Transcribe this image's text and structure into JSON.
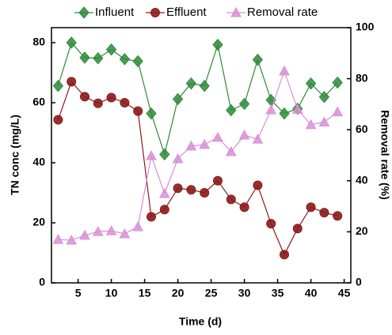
{
  "chart_data": {
    "type": "line",
    "xlabel": "Time (d)",
    "ylabel": "TN conc (mg/L)",
    "y2label": "Removal rate (%)",
    "x": [
      2,
      4,
      6,
      8,
      10,
      12,
      14,
      16,
      18,
      20,
      22,
      24,
      26,
      28,
      30,
      32,
      34,
      36,
      38,
      40,
      42,
      44
    ],
    "series": [
      {
        "name": "Influent",
        "color": "#2e8b3a",
        "marker": "diamond",
        "values": [
          65.6,
          80,
          75,
          74.8,
          77.7,
          74.5,
          73.8,
          56.4,
          42.8,
          61.2,
          66.4,
          65.6,
          79.3,
          57.5,
          59.6,
          74.3,
          60.9,
          56.4,
          58,
          66.4,
          61.9,
          66.7
        ]
      },
      {
        "name": "Effluent",
        "color": "#8b1a1a",
        "marker": "circle",
        "values": [
          54.3,
          67,
          62,
          59.8,
          61.7,
          60,
          57.2,
          22,
          24.4,
          31.5,
          31,
          30,
          34,
          27.8,
          25.2,
          32.5,
          19.7,
          9.4,
          18.1,
          25.2,
          23.4,
          22.3
        ]
      },
      {
        "name": "Removal rate",
        "color": "#d98fd6",
        "marker": "triangle",
        "axis": "y2",
        "values": [
          17,
          16.7,
          18.6,
          20.1,
          20.4,
          19.2,
          22,
          49.8,
          35,
          48.6,
          53.6,
          54.2,
          57,
          51.4,
          57.9,
          56.3,
          67.8,
          83,
          68,
          62,
          63,
          67
        ]
      }
    ],
    "xlim": [
      1,
      46
    ],
    "xticks": [
      5,
      10,
      15,
      20,
      25,
      30,
      35,
      40,
      45
    ],
    "ylim": [
      0,
      85
    ],
    "yticks": [
      0,
      20,
      40,
      60,
      80
    ],
    "y2lim": [
      0,
      100
    ],
    "y2ticks": [
      0,
      20,
      40,
      60,
      80,
      100
    ]
  }
}
